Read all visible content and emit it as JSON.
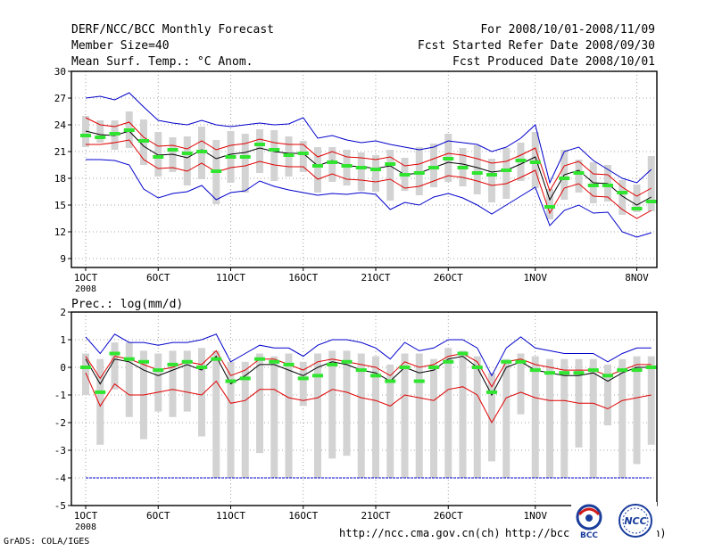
{
  "header": {
    "title": "DERF/NCC/BCC Monthly Forecast",
    "member_size": "Member Size=40",
    "variable": "Mean Surf. Temp.: °C Anom.",
    "period": "For 2008/10/01-2008/11/09",
    "started": "Fcst Started Refer Date 2008/09/30",
    "produced": "Fcst Produced Date 2008/10/01"
  },
  "footer": {
    "grads": "GrADS: COLA/IGES",
    "url1": "http://ncc.cma.gov.cn(ch)",
    "url2": "http://bcc.cma.gov.cn(en)"
  },
  "logos": {
    "bcc": "BCC",
    "ncc": "NCC"
  },
  "colors": {
    "box": "#d3d3d3",
    "median": "#2fe52f",
    "mean": "#000000",
    "ci": "#e00000",
    "range": "#0000cc",
    "grid": "#888888"
  },
  "chart_data": [
    {
      "type": "line",
      "title": "Mean Surf. Temp.: °C Anom.",
      "xlabel": "",
      "ylabel": "",
      "ylim": [
        8,
        30
      ],
      "yticks": [
        9,
        12,
        15,
        18,
        21,
        24,
        27,
        30
      ],
      "xticks": [
        {
          "day": 1,
          "label": "1OCT",
          "sub": "2008"
        },
        {
          "day": 6,
          "label": "6OCT"
        },
        {
          "day": 11,
          "label": "11OCT"
        },
        {
          "day": 16,
          "label": "16OCT"
        },
        {
          "day": 21,
          "label": "21OCT"
        },
        {
          "day": 26,
          "label": "26OCT"
        },
        {
          "day": 32,
          "label": "1NOV"
        },
        {
          "day": 39,
          "label": "8NOV"
        }
      ],
      "x": [
        1,
        2,
        3,
        4,
        5,
        6,
        7,
        8,
        9,
        10,
        11,
        12,
        13,
        14,
        15,
        16,
        17,
        18,
        19,
        20,
        21,
        22,
        23,
        24,
        25,
        26,
        27,
        28,
        29,
        30,
        31,
        32,
        33,
        34,
        35,
        36,
        37,
        38,
        39,
        40
      ],
      "series": [
        {
          "name": "max",
          "values": [
            27.0,
            27.2,
            26.8,
            27.6,
            26.0,
            24.5,
            24.2,
            24.0,
            24.5,
            24.0,
            23.8,
            24.0,
            24.2,
            24.0,
            24.1,
            24.8,
            22.5,
            22.8,
            22.3,
            22.0,
            22.2,
            21.8,
            21.5,
            21.2,
            21.5,
            22.2,
            22.0,
            21.8,
            21.0,
            21.5,
            22.5,
            24.0,
            17.5,
            21.0,
            21.5,
            20.0,
            19.0,
            18.0,
            17.5,
            19.0
          ]
        },
        {
          "name": "upper",
          "values": [
            24.8,
            24.0,
            23.8,
            24.3,
            22.6,
            21.6,
            21.7,
            21.3,
            22.2,
            21.2,
            21.7,
            21.9,
            22.4,
            22.0,
            21.8,
            21.8,
            20.4,
            21.0,
            20.4,
            20.3,
            20.1,
            20.4,
            19.4,
            19.6,
            20.2,
            20.8,
            20.6,
            20.2,
            19.7,
            19.9,
            20.6,
            21.4,
            16.6,
            19.4,
            19.9,
            18.5,
            18.4,
            17.0,
            16.0,
            16.9
          ]
        },
        {
          "name": "mean",
          "values": [
            23.3,
            22.9,
            22.8,
            23.3,
            21.6,
            20.6,
            20.7,
            20.3,
            21.2,
            20.2,
            20.7,
            20.9,
            21.4,
            21.0,
            20.8,
            20.8,
            19.4,
            20.0,
            19.4,
            19.3,
            19.1,
            19.4,
            18.4,
            18.6,
            19.2,
            19.8,
            19.6,
            19.2,
            18.7,
            18.9,
            19.6,
            20.4,
            15.6,
            18.4,
            18.9,
            17.5,
            17.4,
            16.0,
            15.0,
            15.9
          ]
        },
        {
          "name": "lower",
          "values": [
            21.8,
            21.8,
            22.0,
            22.3,
            20.1,
            19.1,
            19.2,
            18.8,
            19.7,
            18.7,
            19.2,
            19.4,
            19.9,
            19.5,
            19.3,
            19.3,
            17.9,
            18.5,
            17.9,
            17.8,
            17.6,
            17.9,
            16.9,
            17.1,
            17.7,
            18.3,
            18.1,
            17.7,
            17.2,
            17.4,
            18.1,
            18.9,
            14.1,
            16.9,
            17.4,
            16.0,
            15.9,
            14.5,
            13.5,
            14.4
          ]
        },
        {
          "name": "min",
          "values": [
            20.1,
            20.1,
            20.0,
            19.5,
            16.8,
            15.8,
            16.3,
            16.5,
            17.2,
            15.6,
            16.4,
            16.6,
            17.7,
            17.1,
            16.7,
            16.4,
            16.1,
            16.3,
            16.2,
            16.4,
            16.2,
            14.5,
            15.3,
            15.0,
            15.9,
            16.3,
            15.8,
            15.0,
            14.0,
            15.0,
            16.0,
            17.0,
            12.7,
            14.4,
            15.0,
            14.1,
            14.2,
            12.0,
            11.4,
            11.9
          ]
        },
        {
          "name": "box_top",
          "values": [
            25.0,
            24.5,
            24.5,
            25.5,
            24.6,
            23.2,
            22.6,
            22.7,
            23.8,
            22.3,
            23.3,
            23.0,
            23.5,
            23.4,
            22.7,
            22.2,
            21.5,
            21.5,
            21.2,
            20.9,
            20.6,
            21.2,
            20.3,
            21.5,
            21.9,
            23.0,
            21.4,
            21.7,
            20.2,
            21.4,
            22.0,
            23.2,
            16.8,
            21.2,
            20.1,
            19.8,
            19.5,
            17.8,
            17.3,
            20.5
          ]
        },
        {
          "name": "box_bottom",
          "values": [
            21.5,
            22.0,
            21.2,
            21.4,
            19.5,
            18.2,
            18.7,
            17.2,
            17.9,
            15.1,
            17.5,
            16.4,
            18.6,
            17.7,
            18.2,
            18.7,
            16.4,
            17.6,
            17.2,
            16.6,
            16.5,
            15.5,
            16.6,
            16.1,
            17.0,
            17.6,
            17.1,
            16.2,
            15.3,
            15.7,
            17.7,
            16.9,
            13.4,
            15.6,
            16.4,
            15.2,
            15.4,
            13.9,
            14.2,
            14.3
          ]
        },
        {
          "name": "median",
          "values": [
            22.8,
            22.6,
            23.0,
            23.4,
            22.2,
            20.4,
            21.2,
            20.8,
            21.0,
            18.8,
            20.4,
            20.4,
            21.8,
            21.2,
            20.6,
            20.8,
            19.4,
            19.8,
            19.4,
            19.2,
            19.0,
            19.6,
            18.4,
            18.6,
            19.2,
            20.2,
            19.2,
            18.6,
            18.4,
            18.9,
            20.0,
            19.8,
            14.8,
            18.0,
            18.6,
            17.2,
            17.2,
            16.4,
            14.6,
            15.4
          ]
        }
      ]
    },
    {
      "type": "line",
      "title": "Prec.: log(mm/d)",
      "xlabel": "",
      "ylabel": "",
      "ylim": [
        -5,
        2
      ],
      "yticks": [
        -5,
        -4,
        -3,
        -2,
        -1,
        0,
        1,
        2
      ],
      "xticks": [
        {
          "day": 1,
          "label": "1OCT",
          "sub": "2008"
        },
        {
          "day": 6,
          "label": "6OCT"
        },
        {
          "day": 11,
          "label": "11OCT"
        },
        {
          "day": 16,
          "label": "16OCT"
        },
        {
          "day": 21,
          "label": "21OCT"
        },
        {
          "day": 26,
          "label": "26OCT"
        },
        {
          "day": 32,
          "label": "1NOV"
        }
      ],
      "x": [
        1,
        2,
        3,
        4,
        5,
        6,
        7,
        8,
        9,
        10,
        11,
        12,
        13,
        14,
        15,
        16,
        17,
        18,
        19,
        20,
        21,
        22,
        23,
        24,
        25,
        26,
        27,
        28,
        29,
        30,
        31,
        32,
        33,
        34,
        35,
        36,
        37,
        38,
        39,
        40
      ],
      "series": [
        {
          "name": "max",
          "values": [
            1.1,
            0.5,
            1.2,
            0.9,
            0.9,
            0.8,
            0.9,
            0.9,
            1.0,
            1.2,
            0.2,
            0.5,
            0.8,
            0.7,
            0.7,
            0.4,
            0.8,
            1.0,
            1.0,
            0.9,
            0.7,
            0.3,
            0.9,
            0.6,
            0.7,
            1.0,
            1.0,
            0.7,
            -0.3,
            0.7,
            1.1,
            0.7,
            0.6,
            0.5,
            0.5,
            0.5,
            0.2,
            0.5,
            0.7,
            0.7
          ]
        },
        {
          "name": "upper",
          "values": [
            0.4,
            -0.4,
            0.4,
            0.3,
            0.1,
            -0.1,
            0.0,
            0.2,
            0.1,
            0.6,
            -0.3,
            -0.1,
            0.3,
            0.3,
            0.1,
            -0.1,
            0.2,
            0.3,
            0.2,
            0.1,
            0.0,
            -0.3,
            0.2,
            0.0,
            0.1,
            0.4,
            0.5,
            0.2,
            -0.7,
            0.2,
            0.3,
            0.1,
            0.0,
            -0.1,
            -0.1,
            -0.1,
            -0.3,
            -0.1,
            0.1,
            0.1
          ]
        },
        {
          "name": "mean",
          "values": [
            0.3,
            -0.6,
            0.3,
            0.2,
            -0.1,
            -0.3,
            -0.1,
            0.1,
            -0.1,
            0.4,
            -0.6,
            -0.3,
            0.1,
            0.1,
            -0.1,
            -0.3,
            0.0,
            0.2,
            0.1,
            -0.1,
            -0.2,
            -0.5,
            0.0,
            -0.2,
            -0.1,
            0.3,
            0.4,
            0.0,
            -1.0,
            0.0,
            0.2,
            -0.1,
            -0.2,
            -0.3,
            -0.3,
            -0.2,
            -0.5,
            -0.2,
            0.0,
            0.0
          ]
        },
        {
          "name": "lower",
          "values": [
            -0.2,
            -1.4,
            -0.6,
            -1.0,
            -1.0,
            -0.9,
            -0.8,
            -0.9,
            -1.0,
            -0.5,
            -1.3,
            -1.2,
            -0.8,
            -0.8,
            -1.1,
            -1.2,
            -1.1,
            -0.8,
            -0.9,
            -1.1,
            -1.2,
            -1.4,
            -1.0,
            -1.1,
            -1.2,
            -0.8,
            -0.7,
            -1.0,
            -2.0,
            -1.1,
            -0.9,
            -1.1,
            -1.2,
            -1.2,
            -1.3,
            -1.3,
            -1.5,
            -1.2,
            -1.1,
            -1.0
          ]
        },
        {
          "name": "min",
          "values": [
            -4.0,
            -4.0,
            -4.0,
            -4.0,
            -4.0,
            -4.0,
            -4.0,
            -4.0,
            -4.0,
            -4.0,
            -4.0,
            -4.0,
            -4.0,
            -4.0,
            -4.0,
            -4.0,
            -4.0,
            -4.0,
            -4.0,
            -4.0,
            -4.0,
            -4.0,
            -4.0,
            -4.0,
            -4.0,
            -4.0,
            -4.0,
            -4.0,
            -4.0,
            -4.0,
            -4.0,
            -4.0,
            -4.0,
            -4.0,
            -4.0,
            -4.0,
            -4.0,
            -4.0,
            -4.0,
            -4.0
          ]
        },
        {
          "name": "box_top",
          "values": [
            0.5,
            0.3,
            0.9,
            0.9,
            0.6,
            0.5,
            0.6,
            0.6,
            0.7,
            0.6,
            0.2,
            0.2,
            0.5,
            0.4,
            0.5,
            0.2,
            0.5,
            0.6,
            0.6,
            0.5,
            0.4,
            0.1,
            0.5,
            0.5,
            0.3,
            0.7,
            0.6,
            0.4,
            -0.2,
            0.3,
            0.5,
            0.4,
            0.3,
            0.3,
            0.3,
            0.3,
            0.1,
            0.3,
            0.4,
            0.4
          ]
        },
        {
          "name": "box_bottom",
          "values": [
            -1.0,
            -2.8,
            -0.8,
            -1.8,
            -2.6,
            -1.6,
            -1.8,
            -1.6,
            -2.5,
            -4.0,
            -4.0,
            -4.0,
            -3.1,
            -4.0,
            -4.0,
            -1.4,
            -4.0,
            -3.3,
            -3.2,
            -4.0,
            -4.0,
            -4.0,
            -4.0,
            -4.0,
            -4.0,
            -4.0,
            -4.0,
            -4.0,
            -3.4,
            -4.0,
            -1.7,
            -4.0,
            -4.0,
            -4.0,
            -2.9,
            -4.0,
            -2.1,
            -4.0,
            -3.5,
            -2.8
          ]
        },
        {
          "name": "median",
          "values": [
            0.0,
            -0.9,
            0.5,
            0.3,
            0.2,
            -0.1,
            0.1,
            0.2,
            0.0,
            0.3,
            -0.5,
            -0.4,
            0.3,
            0.2,
            0.1,
            -0.4,
            -0.3,
            0.1,
            0.2,
            -0.1,
            -0.3,
            -0.5,
            0.0,
            -0.5,
            0.0,
            0.2,
            0.5,
            0.0,
            -0.9,
            0.2,
            0.2,
            -0.1,
            -0.2,
            -0.2,
            -0.2,
            -0.1,
            -0.3,
            -0.1,
            -0.1,
            0.0
          ]
        },
        {
          "name": "threshold",
          "values": [
            -4,
            -4,
            -4,
            -4,
            -4,
            -4,
            -4,
            -4,
            -4,
            -4,
            -4,
            -4,
            -4,
            -4,
            -4,
            -4,
            -4,
            -4,
            -4,
            -4,
            -4,
            -4,
            -4,
            -4,
            -4,
            -4,
            -4,
            -4,
            -4,
            -4,
            -4,
            -4,
            -4,
            -4,
            -4,
            -4,
            -4,
            -4,
            -4,
            -4
          ]
        }
      ]
    }
  ]
}
